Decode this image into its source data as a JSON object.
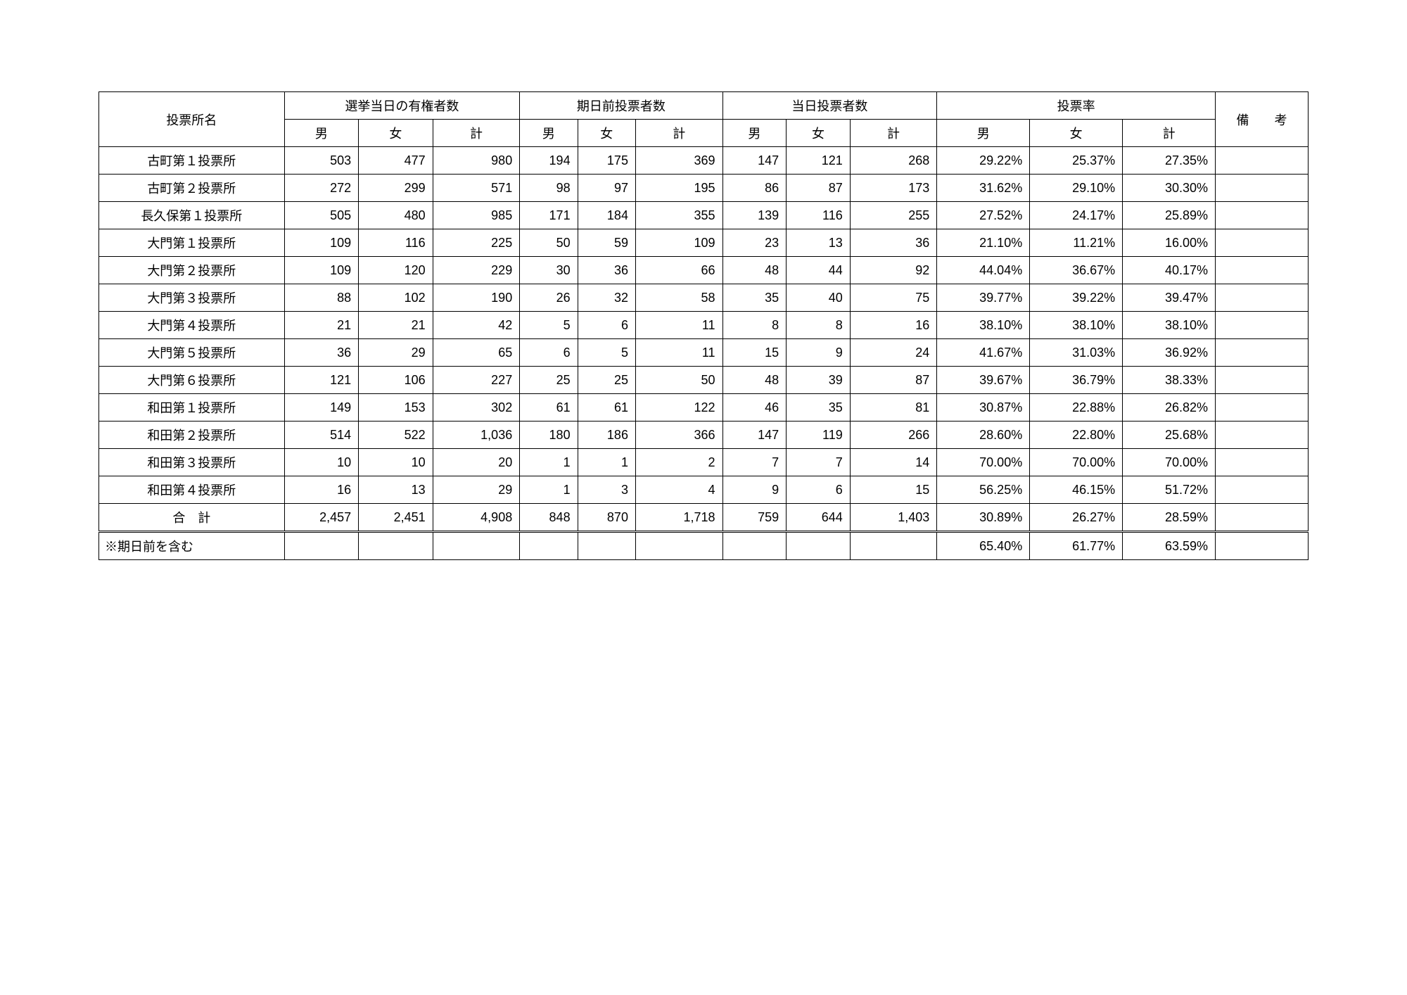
{
  "headers": {
    "col_name": "投票所名",
    "group_eligible": "選挙当日の有権者数",
    "group_early": "期日前投票者数",
    "group_sameday": "当日投票者数",
    "group_rate": "投票率",
    "col_remarks_part1": "備",
    "col_remarks_part2": "考",
    "sub_male": "男",
    "sub_female": "女",
    "sub_total": "計"
  },
  "rows": [
    {
      "name": "古町第１投票所",
      "e_m": "503",
      "e_f": "477",
      "e_t": "980",
      "p_m": "194",
      "p_f": "175",
      "p_t": "369",
      "d_m": "147",
      "d_f": "121",
      "d_t": "268",
      "r_m": "29.22%",
      "r_f": "25.37%",
      "r_t": "27.35%"
    },
    {
      "name": "古町第２投票所",
      "e_m": "272",
      "e_f": "299",
      "e_t": "571",
      "p_m": "98",
      "p_f": "97",
      "p_t": "195",
      "d_m": "86",
      "d_f": "87",
      "d_t": "173",
      "r_m": "31.62%",
      "r_f": "29.10%",
      "r_t": "30.30%"
    },
    {
      "name": "長久保第１投票所",
      "e_m": "505",
      "e_f": "480",
      "e_t": "985",
      "p_m": "171",
      "p_f": "184",
      "p_t": "355",
      "d_m": "139",
      "d_f": "116",
      "d_t": "255",
      "r_m": "27.52%",
      "r_f": "24.17%",
      "r_t": "25.89%"
    },
    {
      "name": "大門第１投票所",
      "e_m": "109",
      "e_f": "116",
      "e_t": "225",
      "p_m": "50",
      "p_f": "59",
      "p_t": "109",
      "d_m": "23",
      "d_f": "13",
      "d_t": "36",
      "r_m": "21.10%",
      "r_f": "11.21%",
      "r_t": "16.00%"
    },
    {
      "name": "大門第２投票所",
      "e_m": "109",
      "e_f": "120",
      "e_t": "229",
      "p_m": "30",
      "p_f": "36",
      "p_t": "66",
      "d_m": "48",
      "d_f": "44",
      "d_t": "92",
      "r_m": "44.04%",
      "r_f": "36.67%",
      "r_t": "40.17%"
    },
    {
      "name": "大門第３投票所",
      "e_m": "88",
      "e_f": "102",
      "e_t": "190",
      "p_m": "26",
      "p_f": "32",
      "p_t": "58",
      "d_m": "35",
      "d_f": "40",
      "d_t": "75",
      "r_m": "39.77%",
      "r_f": "39.22%",
      "r_t": "39.47%"
    },
    {
      "name": "大門第４投票所",
      "e_m": "21",
      "e_f": "21",
      "e_t": "42",
      "p_m": "5",
      "p_f": "6",
      "p_t": "11",
      "d_m": "8",
      "d_f": "8",
      "d_t": "16",
      "r_m": "38.10%",
      "r_f": "38.10%",
      "r_t": "38.10%"
    },
    {
      "name": "大門第５投票所",
      "e_m": "36",
      "e_f": "29",
      "e_t": "65",
      "p_m": "6",
      "p_f": "5",
      "p_t": "11",
      "d_m": "15",
      "d_f": "9",
      "d_t": "24",
      "r_m": "41.67%",
      "r_f": "31.03%",
      "r_t": "36.92%"
    },
    {
      "name": "大門第６投票所",
      "e_m": "121",
      "e_f": "106",
      "e_t": "227",
      "p_m": "25",
      "p_f": "25",
      "p_t": "50",
      "d_m": "48",
      "d_f": "39",
      "d_t": "87",
      "r_m": "39.67%",
      "r_f": "36.79%",
      "r_t": "38.33%"
    },
    {
      "name": "和田第１投票所",
      "e_m": "149",
      "e_f": "153",
      "e_t": "302",
      "p_m": "61",
      "p_f": "61",
      "p_t": "122",
      "d_m": "46",
      "d_f": "35",
      "d_t": "81",
      "r_m": "30.87%",
      "r_f": "22.88%",
      "r_t": "26.82%"
    },
    {
      "name": "和田第２投票所",
      "e_m": "514",
      "e_f": "522",
      "e_t": "1,036",
      "p_m": "180",
      "p_f": "186",
      "p_t": "366",
      "d_m": "147",
      "d_f": "119",
      "d_t": "266",
      "r_m": "28.60%",
      "r_f": "22.80%",
      "r_t": "25.68%"
    },
    {
      "name": "和田第３投票所",
      "e_m": "10",
      "e_f": "10",
      "e_t": "20",
      "p_m": "1",
      "p_f": "1",
      "p_t": "2",
      "d_m": "7",
      "d_f": "7",
      "d_t": "14",
      "r_m": "70.00%",
      "r_f": "70.00%",
      "r_t": "70.00%"
    },
    {
      "name": "和田第４投票所",
      "e_m": "16",
      "e_f": "13",
      "e_t": "29",
      "p_m": "1",
      "p_f": "3",
      "p_t": "4",
      "d_m": "9",
      "d_f": "6",
      "d_t": "15",
      "r_m": "56.25%",
      "r_f": "46.15%",
      "r_t": "51.72%"
    }
  ],
  "total": {
    "label": "合　計",
    "e_m": "2,457",
    "e_f": "2,451",
    "e_t": "4,908",
    "p_m": "848",
    "p_f": "870",
    "p_t": "1,718",
    "d_m": "759",
    "d_f": "644",
    "d_t": "1,403",
    "r_m": "30.89%",
    "r_f": "26.27%",
    "r_t": "28.59%"
  },
  "footer": {
    "label": "※期日前を含む",
    "r_m": "65.40%",
    "r_f": "61.77%",
    "r_t": "63.59%"
  }
}
